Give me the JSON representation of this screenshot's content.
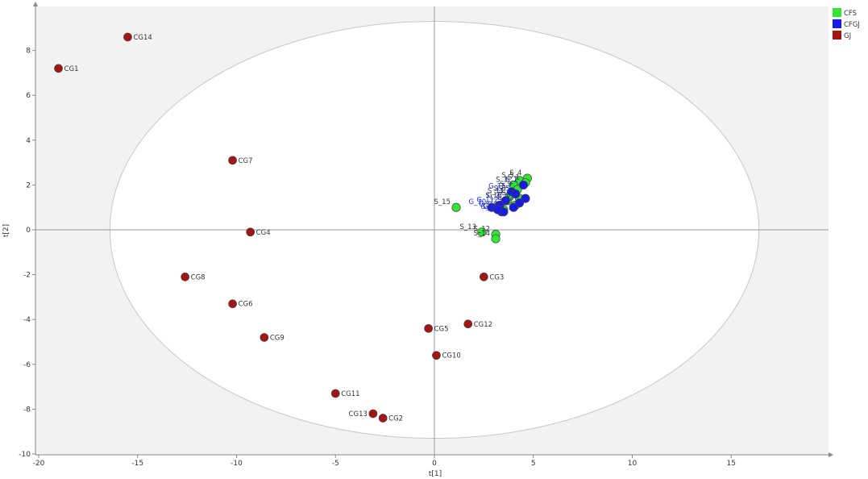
{
  "chart_data": {
    "type": "scatter",
    "title": "",
    "xlabel": "t[1]",
    "ylabel": "t[2]",
    "xlim": [
      -20,
      20
    ],
    "ylim": [
      -10,
      10
    ],
    "x_ticks": [
      "-20",
      "-15",
      "-10",
      "-5",
      "0",
      "5",
      "10",
      "15"
    ],
    "y_ticks": [
      "-10",
      "-8",
      "-6",
      "-4",
      "-2",
      "0",
      "2",
      "4",
      "6",
      "8"
    ],
    "ellipse": {
      "center": [
        0,
        0
      ],
      "rx": 16.4,
      "ry": 9.3
    },
    "legend": {
      "position": "top-right"
    },
    "series": [
      {
        "name": "CFS",
        "color": "#33e633",
        "points": [
          {
            "label": "S_4",
            "x": 4.7,
            "y": 2.3
          },
          {
            "label": "S_5",
            "x": 4.3,
            "y": 2.2
          },
          {
            "label": "S_1",
            "x": 4.6,
            "y": 2.1
          },
          {
            "label": "S_3",
            "x": 4.0,
            "y": 2.0
          },
          {
            "label": "S_9",
            "x": 4.2,
            "y": 1.8
          },
          {
            "label": "S_6",
            "x": 3.9,
            "y": 1.6
          },
          {
            "label": "S_2",
            "x": 4.3,
            "y": 1.4
          },
          {
            "label": "S_10",
            "x": 3.7,
            "y": 1.3
          },
          {
            "label": "S_7",
            "x": 4.1,
            "y": 1.1
          },
          {
            "label": "S_8",
            "x": 3.5,
            "y": 0.9
          },
          {
            "label": "S_15",
            "x": 1.1,
            "y": 1.0
          },
          {
            "label": "S_13",
            "x": 2.4,
            "y": -0.1
          },
          {
            "label": "S_12",
            "x": 3.1,
            "y": -0.2
          },
          {
            "label": "S_14",
            "x": 3.1,
            "y": -0.4
          },
          {
            "label": "S_11",
            "x": 3.8,
            "y": 1.5
          }
        ]
      },
      {
        "name": "CFGJ",
        "color": "#1a1ae6",
        "points": [
          {
            "label": "G_1",
            "x": 4.5,
            "y": 2.0
          },
          {
            "label": "G_15",
            "x": 3.9,
            "y": 1.7
          },
          {
            "label": "G_5",
            "x": 4.1,
            "y": 1.6
          },
          {
            "label": "G_2",
            "x": 4.6,
            "y": 1.4
          },
          {
            "label": "G_11",
            "x": 3.3,
            "y": 1.1
          },
          {
            "label": "G_10",
            "x": 2.9,
            "y": 1.0
          },
          {
            "label": "G_12",
            "x": 4.3,
            "y": 1.2
          },
          {
            "label": "G_8",
            "x": 3.4,
            "y": 0.8
          },
          {
            "label": "G_14",
            "x": 3.5,
            "y": 0.8
          },
          {
            "label": "G_7",
            "x": 4.0,
            "y": 1.0
          },
          {
            "label": "G_3",
            "x": 3.6,
            "y": 1.3
          },
          {
            "label": "G_9",
            "x": 3.2,
            "y": 0.9
          }
        ]
      },
      {
        "name": "GJ",
        "color": "#a31515",
        "points": [
          {
            "label": "CG1",
            "x": -19.0,
            "y": 7.2
          },
          {
            "label": "CG14",
            "x": -15.5,
            "y": 8.6
          },
          {
            "label": "CG7",
            "x": -10.2,
            "y": 3.1
          },
          {
            "label": "CG4",
            "x": -9.3,
            "y": -0.1
          },
          {
            "label": "CG8",
            "x": -12.6,
            "y": -2.1
          },
          {
            "label": "CG6",
            "x": -10.2,
            "y": -3.3
          },
          {
            "label": "CG9",
            "x": -8.6,
            "y": -4.8
          },
          {
            "label": "CG3",
            "x": 2.5,
            "y": -2.1
          },
          {
            "label": "CG12",
            "x": 1.7,
            "y": -4.2
          },
          {
            "label": "CG5",
            "x": -0.3,
            "y": -4.4
          },
          {
            "label": "CG10",
            "x": 0.1,
            "y": -5.6
          },
          {
            "label": "CG11",
            "x": -5.0,
            "y": -7.3
          },
          {
            "label": "CG13",
            "x": -3.1,
            "y": -8.2
          },
          {
            "label": "CG2",
            "x": -2.6,
            "y": -8.4
          }
        ]
      }
    ]
  }
}
